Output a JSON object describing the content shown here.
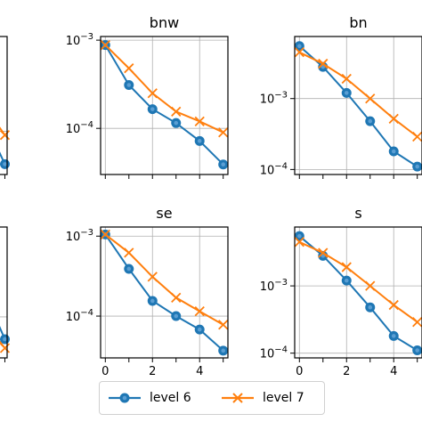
{
  "chart_data": [
    {
      "type": "line",
      "panel": "left-top-partial",
      "title": "",
      "yscale": "log",
      "ylim": [
        3e-05,
        0.0014
      ],
      "xticks": [
        4
      ],
      "yticks": [],
      "series": [
        {
          "name": "level 6",
          "x": [
            4,
            5
          ],
          "y": [
            7.8e-05,
            4e-05
          ]
        },
        {
          "name": "level 7",
          "x": [
            4,
            5
          ],
          "y": [
            0.00014,
            9e-05
          ]
        }
      ]
    },
    {
      "type": "line",
      "panel": "bnw",
      "title": "bnw",
      "yscale": "log",
      "ylim": [
        3e-05,
        0.0011
      ],
      "xticks": [],
      "yticks": [
        0.001,
        0.0001
      ],
      "series": [
        {
          "name": "level 6",
          "x": [
            0,
            1,
            2,
            3,
            4,
            5
          ],
          "y": [
            0.00088,
            0.00031,
            0.000165,
            0.000115,
            7.2e-05,
            3.9e-05
          ]
        },
        {
          "name": "level 7",
          "x": [
            0,
            1,
            2,
            3,
            4,
            5
          ],
          "y": [
            0.00088,
            0.00048,
            0.00025,
            0.000155,
            0.00012,
            9e-05
          ]
        }
      ]
    },
    {
      "type": "line",
      "panel": "bn",
      "title": "bn",
      "yscale": "log",
      "ylim": [
        8.5e-05,
        0.0075
      ],
      "xticks": [],
      "yticks": [
        0.001,
        0.0001
      ],
      "series": [
        {
          "name": "level 6",
          "x": [
            0,
            1,
            2,
            3,
            4,
            5
          ],
          "y": [
            0.0055,
            0.0028,
            0.0012,
            0.00048,
            0.00018,
            0.00011
          ]
        },
        {
          "name": "level 7",
          "x": [
            0,
            1,
            2,
            3,
            4,
            5
          ],
          "y": [
            0.0045,
            0.0031,
            0.0019,
            0.001,
            0.00052,
            0.00029
          ]
        }
      ]
    },
    {
      "type": "line",
      "panel": "left-bottom-partial",
      "title": "",
      "yscale": "log",
      "ylim": [
        3e-05,
        0.0014
      ],
      "xticks": [
        4
      ],
      "yticks": [],
      "series": [
        {
          "name": "level 6",
          "x": [
            4,
            5
          ],
          "y": [
            0.00011,
            5.2e-05
          ]
        },
        {
          "name": "level 7",
          "x": [
            4,
            5
          ],
          "y": [
            6e-05,
            4e-05
          ]
        }
      ]
    },
    {
      "type": "line",
      "panel": "se",
      "title": "se",
      "yscale": "log",
      "ylim": [
        3e-05,
        0.0013
      ],
      "xticks": [
        0,
        2,
        4
      ],
      "yticks": [
        0.001,
        0.0001
      ],
      "series": [
        {
          "name": "level 6",
          "x": [
            0,
            1,
            2,
            3,
            4,
            5
          ],
          "y": [
            0.00105,
            0.00039,
            0.000155,
            0.0001,
            6.8e-05,
            3.7e-05
          ]
        },
        {
          "name": "level 7",
          "x": [
            0,
            1,
            2,
            3,
            4,
            5
          ],
          "y": [
            0.00105,
            0.00062,
            0.00031,
            0.00017,
            0.000115,
            7.8e-05
          ]
        }
      ]
    },
    {
      "type": "line",
      "panel": "s",
      "title": "s",
      "yscale": "log",
      "ylim": [
        8.5e-05,
        0.0075
      ],
      "xticks": [
        0,
        2,
        4
      ],
      "yticks": [
        0.001,
        0.0001
      ],
      "series": [
        {
          "name": "level 6",
          "x": [
            0,
            1,
            2,
            3,
            4,
            5
          ],
          "y": [
            0.0055,
            0.0028,
            0.0012,
            0.00048,
            0.00018,
            0.00011
          ]
        },
        {
          "name": "level 7",
          "x": [
            0,
            1,
            2,
            3,
            4,
            5
          ],
          "y": [
            0.0045,
            0.0031,
            0.0019,
            0.001,
            0.00052,
            0.00029
          ]
        }
      ]
    }
  ],
  "legend": {
    "items": [
      {
        "label": "level 6",
        "color": "#1f77b4",
        "marker": "circle"
      },
      {
        "label": "level 7",
        "color": "#ff7f0e",
        "marker": "x"
      }
    ],
    "placement": "bottom-center"
  },
  "tick_labels": {
    "x": [
      "0",
      "2",
      "4"
    ],
    "y_sup": [
      "10",
      "−3",
      "10",
      "−4"
    ]
  }
}
